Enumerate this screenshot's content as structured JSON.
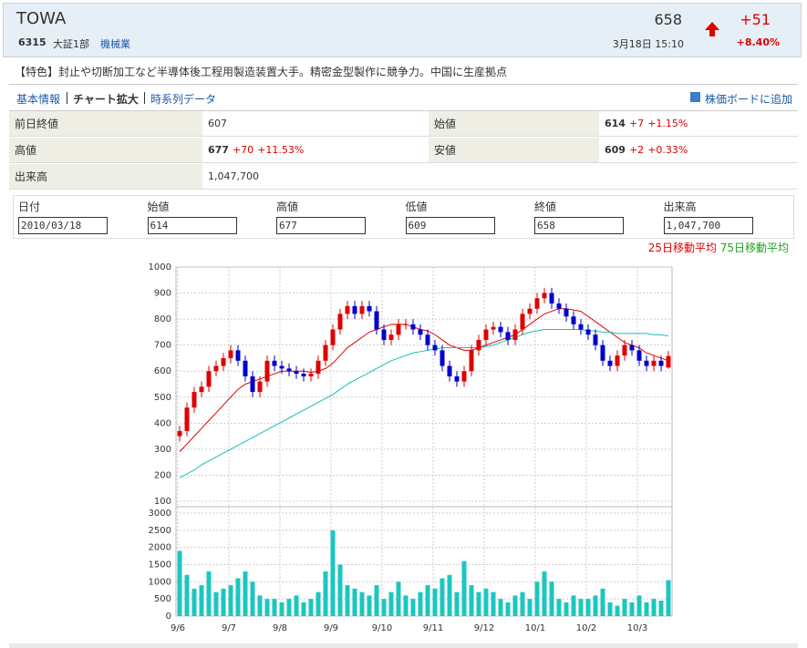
{
  "header": {
    "name": "TOWA",
    "code": "6315",
    "market": "大証1部",
    "industry": "機械業",
    "price": "658",
    "change": "+51",
    "change_pct": "+8.40%",
    "datetime": "3月18日 15:10"
  },
  "feature": "【特色】封止や切断加工など半導体後工程用製造装置大手。精密金型製作に競争力。中国に生産拠点",
  "nav": {
    "links": [
      "基本情報",
      "チャート拡大",
      "時系列データ"
    ],
    "add": "株価ボードに追加"
  },
  "info_table": [
    [
      {
        "label": "前日終値",
        "value": "607"
      },
      {
        "label": "始値",
        "value": "614",
        "change": "+7",
        "change_pct": "+1.15%"
      }
    ],
    [
      {
        "label": "高値",
        "value": "677",
        "change": "+70",
        "change_pct": "+11.53%"
      },
      {
        "label": "安値",
        "value": "609",
        "change": "+2",
        "change_pct": "+0.33%"
      }
    ],
    [
      {
        "label": "出来高",
        "value": "1,047,700"
      }
    ]
  ],
  "ohlc_form": {
    "headers": [
      "日付",
      "始値",
      "高値",
      "低値",
      "終値",
      "出来高"
    ],
    "values": [
      "2010/03/18",
      "614",
      "677",
      "609",
      "658",
      "1,047,700"
    ]
  },
  "chart_data": {
    "type": "candlestick",
    "up_color": "#e00000",
    "down_color": "#0000cc",
    "grid": true,
    "open": [
      350,
      370,
      460,
      520,
      540,
      600,
      620,
      650,
      680,
      640,
      580,
      520,
      560,
      640,
      620,
      610,
      600,
      590,
      580,
      590,
      640,
      700,
      760,
      820,
      850,
      820,
      850,
      830,
      760,
      720,
      740,
      780,
      780,
      760,
      740,
      700,
      680,
      620,
      580,
      560,
      600,
      680,
      720,
      760,
      770,
      750,
      720,
      760,
      820,
      840,
      880,
      900,
      860,
      840,
      810,
      780,
      760,
      740,
      700,
      640,
      620,
      660,
      700,
      680,
      640,
      620,
      640,
      614
    ],
    "high": [
      390,
      480,
      540,
      560,
      620,
      640,
      670,
      700,
      700,
      660,
      600,
      580,
      660,
      660,
      640,
      630,
      620,
      610,
      610,
      660,
      720,
      780,
      840,
      870,
      870,
      870,
      870,
      850,
      780,
      760,
      800,
      800,
      800,
      780,
      760,
      720,
      700,
      640,
      600,
      620,
      700,
      740,
      780,
      790,
      790,
      770,
      780,
      840,
      860,
      900,
      920,
      920,
      880,
      860,
      830,
      800,
      780,
      760,
      720,
      660,
      680,
      720,
      720,
      700,
      660,
      660,
      660,
      677
    ],
    "low": [
      330,
      350,
      440,
      500,
      520,
      580,
      600,
      630,
      620,
      560,
      500,
      500,
      540,
      600,
      590,
      580,
      570,
      560,
      560,
      570,
      620,
      680,
      740,
      800,
      800,
      800,
      810,
      740,
      700,
      700,
      720,
      760,
      740,
      720,
      680,
      660,
      600,
      560,
      540,
      540,
      580,
      660,
      700,
      740,
      730,
      700,
      700,
      740,
      800,
      820,
      860,
      840,
      820,
      790,
      760,
      740,
      720,
      680,
      620,
      600,
      600,
      640,
      660,
      620,
      600,
      600,
      600,
      609
    ],
    "close": [
      370,
      460,
      520,
      540,
      600,
      620,
      650,
      680,
      640,
      580,
      520,
      560,
      640,
      620,
      610,
      600,
      590,
      580,
      590,
      640,
      700,
      760,
      820,
      850,
      820,
      850,
      830,
      760,
      720,
      740,
      780,
      780,
      760,
      740,
      700,
      680,
      620,
      580,
      560,
      600,
      680,
      720,
      760,
      770,
      750,
      720,
      760,
      820,
      840,
      880,
      900,
      860,
      840,
      810,
      780,
      760,
      740,
      700,
      640,
      620,
      660,
      700,
      680,
      640,
      620,
      640,
      620,
      658
    ],
    "series": [
      {
        "name": "25日移動平均",
        "color": "#e00000",
        "values": [
          290,
          320,
          350,
          380,
          410,
          440,
          470,
          500,
          530,
          550,
          560,
          570,
          580,
          590,
          600,
          600,
          600,
          600,
          595,
          600,
          610,
          630,
          660,
          690,
          710,
          730,
          750,
          760,
          770,
          780,
          780,
          780,
          770,
          760,
          755,
          740,
          720,
          700,
          690,
          680,
          680,
          690,
          700,
          710,
          720,
          730,
          740,
          760,
          780,
          800,
          820,
          830,
          840,
          840,
          835,
          830,
          810,
          790,
          770,
          750,
          730,
          710,
          700,
          690,
          670,
          660,
          650,
          640
        ]
      },
      {
        "name": "75日移動平均",
        "color": "#17bebb",
        "values": [
          190,
          205,
          220,
          240,
          255,
          270,
          285,
          300,
          315,
          330,
          345,
          360,
          375,
          390,
          405,
          420,
          435,
          450,
          465,
          480,
          495,
          510,
          530,
          550,
          565,
          580,
          595,
          610,
          625,
          640,
          650,
          660,
          670,
          675,
          680,
          685,
          690,
          690,
          690,
          690,
          690,
          690,
          695,
          700,
          710,
          720,
          730,
          740,
          750,
          755,
          760,
          760,
          760,
          760,
          760,
          760,
          755,
          755,
          750,
          750,
          745,
          745,
          745,
          745,
          745,
          740,
          740,
          735
        ]
      }
    ],
    "volume": {
      "color": "#1cc6c0",
      "values": [
        1900,
        1200,
        800,
        900,
        1300,
        700,
        800,
        900,
        1100,
        1300,
        1000,
        600,
        500,
        500,
        400,
        500,
        600,
        400,
        500,
        700,
        1300,
        2500,
        1500,
        900,
        800,
        700,
        600,
        900,
        500,
        700,
        1000,
        600,
        500,
        700,
        900,
        800,
        1100,
        1200,
        700,
        1600,
        900,
        700,
        800,
        700,
        500,
        400,
        600,
        700,
        500,
        1000,
        1300,
        1000,
        500,
        400,
        600,
        500,
        500,
        600,
        800,
        400,
        300,
        500,
        400,
        600,
        400,
        500,
        450,
        1047.7
      ],
      "ylim": [
        0,
        3000
      ],
      "yticks": [
        0,
        500,
        1000,
        1500,
        2000,
        2500,
        3000
      ]
    },
    "ylim": [
      100,
      1000
    ],
    "yticks": [
      100,
      200,
      300,
      400,
      500,
      600,
      700,
      800,
      900,
      1000
    ],
    "xticks": [
      {
        "value": 0,
        "label": "9/6"
      },
      {
        "value": 7,
        "label": "9/7"
      },
      {
        "value": 14,
        "label": "9/8"
      },
      {
        "value": 21,
        "label": "9/9"
      },
      {
        "value": 28,
        "label": "9/10"
      },
      {
        "value": 35,
        "label": "9/11"
      },
      {
        "value": 42,
        "label": "9/12"
      },
      {
        "value": 49,
        "label": "10/1"
      },
      {
        "value": 56,
        "label": "10/2"
      },
      {
        "value": 63,
        "label": "10/3"
      }
    ]
  }
}
